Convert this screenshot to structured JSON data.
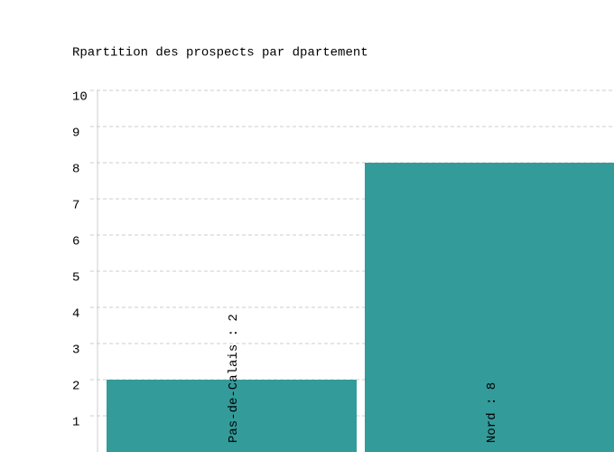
{
  "chart_data": {
    "type": "bar",
    "title": "Rpartition des prospects par dpartement",
    "values": [
      2,
      8
    ],
    "value_labels": [
      "Pas-de-Calais : 2",
      "Nord : 8"
    ],
    "color": "#339b99",
    "ylim": [
      0,
      10
    ],
    "yticks": [
      1,
      2,
      3,
      4,
      5,
      6,
      7,
      8,
      9,
      10
    ],
    "grid": true
  }
}
